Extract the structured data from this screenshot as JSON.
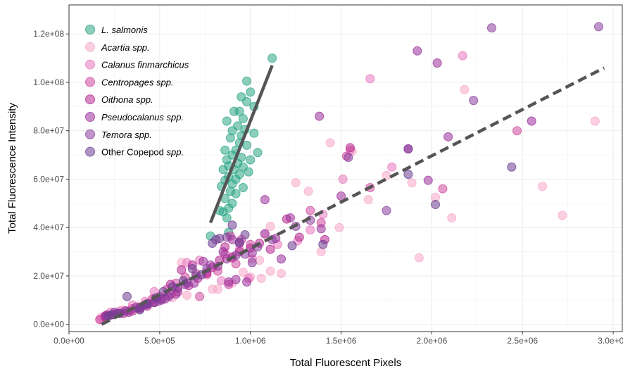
{
  "chart_data": {
    "type": "scatter",
    "xlabel": "Total Fluorescent Pixels",
    "ylabel": "Total Fluorescence Intensity",
    "xlim": [
      0,
      3050000
    ],
    "ylim": [
      -3000000,
      132000000
    ],
    "x_ticks": [
      0,
      500000,
      1000000,
      1500000,
      2000000,
      2500000,
      3000000
    ],
    "x_tick_labels": [
      "0.0e+00",
      "5.0e+05",
      "1.0e+06",
      "1.5e+06",
      "2.0e+06",
      "2.5e+06",
      "3.0e+06"
    ],
    "y_ticks": [
      0,
      20000000,
      40000000,
      60000000,
      80000000,
      100000000,
      120000000
    ],
    "y_tick_labels": [
      "0.0e+00",
      "2.0e+07",
      "4.0e+07",
      "6.0e+07",
      "8.0e+07",
      "1.0e+08",
      "1.2e+08"
    ],
    "grid": true,
    "legend_position": "top-left",
    "series": [
      {
        "name": "L. salmonis",
        "italic": true,
        "color": "#2ca585",
        "points": [
          [
            1120000,
            110000000
          ],
          [
            980000,
            100500000
          ],
          [
            1000000,
            96000000
          ],
          [
            980000,
            92000000
          ],
          [
            950000,
            94000000
          ],
          [
            1020000,
            90000000
          ],
          [
            940000,
            88000000
          ],
          [
            910000,
            88000000
          ],
          [
            960000,
            85000000
          ],
          [
            870000,
            84000000
          ],
          [
            930000,
            82000000
          ],
          [
            970000,
            80500000
          ],
          [
            900000,
            80000000
          ],
          [
            1020000,
            79000000
          ],
          [
            950000,
            78000000
          ],
          [
            890000,
            77000000
          ],
          [
            940000,
            75000000
          ],
          [
            980000,
            74000000
          ],
          [
            860000,
            72000000
          ],
          [
            920000,
            72000000
          ],
          [
            1040000,
            71000000
          ],
          [
            900000,
            70000000
          ],
          [
            950000,
            69000000
          ],
          [
            1000000,
            68000000
          ],
          [
            870000,
            68000000
          ],
          [
            930000,
            66500000
          ],
          [
            880000,
            65500000
          ],
          [
            960000,
            65000000
          ],
          [
            910000,
            64000000
          ],
          [
            850000,
            64000000
          ],
          [
            990000,
            63000000
          ],
          [
            940000,
            62000000
          ],
          [
            880000,
            61000000
          ],
          [
            920000,
            60000000
          ],
          [
            860000,
            59500000
          ],
          [
            900000,
            58000000
          ],
          [
            840000,
            57000000
          ],
          [
            960000,
            56500000
          ],
          [
            890000,
            55000000
          ],
          [
            920000,
            54000000
          ],
          [
            860000,
            52000000
          ],
          [
            900000,
            50000000
          ],
          [
            880000,
            48000000
          ],
          [
            850000,
            46500000
          ],
          [
            870000,
            44000000
          ],
          [
            830000,
            47000000
          ],
          [
            880000,
            38000000
          ],
          [
            780000,
            36500000
          ]
        ]
      },
      {
        "name": "Acartia spp.",
        "italic": true,
        "color": "#f7a8c8",
        "points": [
          [
            2900000,
            84000000
          ],
          [
            2180000,
            97000000
          ],
          [
            1440000,
            75000000
          ],
          [
            1560000,
            71500000
          ],
          [
            1750000,
            61500000
          ],
          [
            1650000,
            51500000
          ],
          [
            1250000,
            58500000
          ],
          [
            1320000,
            55000000
          ],
          [
            1890000,
            58500000
          ],
          [
            2020000,
            52500000
          ],
          [
            2110000,
            44000000
          ],
          [
            2610000,
            57000000
          ],
          [
            2720000,
            45000000
          ],
          [
            1930000,
            27500000
          ],
          [
            1490000,
            40000000
          ],
          [
            1390000,
            30000000
          ],
          [
            1110000,
            40500000
          ],
          [
            1080000,
            37000000
          ],
          [
            1050000,
            26500000
          ],
          [
            1110000,
            22000000
          ],
          [
            1170000,
            21000000
          ],
          [
            1000000,
            19500000
          ],
          [
            1060000,
            19000000
          ],
          [
            960000,
            21500000
          ],
          [
            900000,
            17000000
          ],
          [
            820000,
            14500000
          ],
          [
            790000,
            14500000
          ],
          [
            650000,
            12000000
          ],
          [
            570000,
            11000000
          ],
          [
            460000,
            10000000
          ],
          [
            380000,
            7500000
          ],
          [
            300000,
            6000000
          ],
          [
            180000,
            3000000
          ],
          [
            620000,
            25500000
          ]
        ]
      },
      {
        "name": "Calanus finmarchicus",
        "italic": true,
        "color": "#e879be",
        "points": [
          [
            1660000,
            101500000
          ],
          [
            2170000,
            111000000
          ],
          [
            1780000,
            65000000
          ],
          [
            1550000,
            72000000
          ],
          [
            1510000,
            60000000
          ],
          [
            1400000,
            45500000
          ],
          [
            1330000,
            39000000
          ],
          [
            1260000,
            34500000
          ],
          [
            1150000,
            33000000
          ],
          [
            1010000,
            27000000
          ],
          [
            940000,
            31000000
          ],
          [
            900000,
            28000000
          ],
          [
            720000,
            26500000
          ],
          [
            650000,
            25500000
          ],
          [
            600000,
            15000000
          ],
          [
            540000,
            12000000
          ],
          [
            470000,
            13500000
          ],
          [
            420000,
            9500000
          ],
          [
            350000,
            8000000
          ],
          [
            280000,
            5500000
          ],
          [
            230000,
            5000000
          ],
          [
            200000,
            3000000
          ],
          [
            170000,
            2000000
          ],
          [
            760000,
            20500000
          ],
          [
            840000,
            18000000
          ],
          [
            990000,
            19000000
          ]
        ]
      },
      {
        "name": "Centropages spp.",
        "italic": true,
        "color": "#d04ba0",
        "points": [
          [
            2470000,
            80000000
          ],
          [
            2060000,
            56000000
          ],
          [
            1530000,
            69500000
          ],
          [
            1660000,
            56500000
          ],
          [
            1390000,
            42000000
          ],
          [
            1330000,
            47000000
          ],
          [
            1000000,
            33000000
          ],
          [
            950000,
            35000000
          ],
          [
            890000,
            36500000
          ],
          [
            860000,
            29000000
          ],
          [
            820000,
            22000000
          ],
          [
            760000,
            21500000
          ],
          [
            700000,
            21000000
          ],
          [
            640000,
            19500000
          ],
          [
            590000,
            17000000
          ],
          [
            540000,
            14500000
          ],
          [
            500000,
            11500000
          ],
          [
            460000,
            10500000
          ],
          [
            420000,
            8000000
          ],
          [
            390000,
            7000000
          ],
          [
            350000,
            6500000
          ],
          [
            320000,
            5500000
          ],
          [
            260000,
            4500000
          ],
          [
            210000,
            4000000
          ],
          [
            170000,
            2000000
          ],
          [
            920000,
            25000000
          ],
          [
            880000,
            16500000
          ],
          [
            720000,
            11500000
          ]
        ]
      },
      {
        "name": "Oithona spp.",
        "italic": true,
        "color": "#b5288f",
        "points": [
          [
            1550000,
            73000000
          ],
          [
            1410000,
            35000000
          ],
          [
            1270000,
            36000000
          ],
          [
            1200000,
            43500000
          ],
          [
            1110000,
            31000000
          ],
          [
            1050000,
            33500000
          ],
          [
            1000000,
            31500000
          ],
          [
            940000,
            30000000
          ],
          [
            900000,
            27500000
          ],
          [
            860000,
            32000000
          ],
          [
            830000,
            26500000
          ],
          [
            790000,
            23500000
          ],
          [
            760000,
            21000000
          ],
          [
            710000,
            19000000
          ],
          [
            660000,
            16000000
          ],
          [
            600000,
            13500000
          ],
          [
            560000,
            12500000
          ],
          [
            510000,
            10500000
          ],
          [
            470000,
            9000000
          ],
          [
            430000,
            7500000
          ],
          [
            390000,
            6500000
          ],
          [
            350000,
            5500000
          ],
          [
            300000,
            4500000
          ],
          [
            240000,
            4000000
          ],
          [
            200000,
            3000000
          ],
          [
            560000,
            16500000
          ],
          [
            620000,
            22500000
          ],
          [
            680000,
            24500000
          ]
        ]
      },
      {
        "name": "Pseudocalanus spp.",
        "italic": true,
        "color": "#9b2f9b",
        "points": [
          [
            1920000,
            113000000
          ],
          [
            2030000,
            108000000
          ],
          [
            1380000,
            86000000
          ],
          [
            2090000,
            77500000
          ],
          [
            2550000,
            84000000
          ],
          [
            1870000,
            72500000
          ],
          [
            1980000,
            59500000
          ],
          [
            1500000,
            53000000
          ],
          [
            1080000,
            51500000
          ],
          [
            1390000,
            39500000
          ],
          [
            1140000,
            35500000
          ],
          [
            1080000,
            37500000
          ],
          [
            1010000,
            29500000
          ],
          [
            940000,
            33500000
          ],
          [
            900000,
            35000000
          ],
          [
            850000,
            30000000
          ],
          [
            820000,
            24000000
          ],
          [
            780000,
            24500000
          ],
          [
            740000,
            26000000
          ],
          [
            690000,
            17000000
          ],
          [
            640000,
            16500000
          ],
          [
            590000,
            12500000
          ],
          [
            530000,
            10500000
          ],
          [
            490000,
            9500000
          ],
          [
            440000,
            8500000
          ],
          [
            390000,
            7000000
          ],
          [
            330000,
            5000000
          ],
          [
            270000,
            4500000
          ],
          [
            200000,
            3500000
          ],
          [
            1170000,
            27000000
          ],
          [
            1220000,
            44000000
          ],
          [
            870000,
            27000000
          ],
          [
            920000,
            18500000
          ],
          [
            880000,
            17500000
          ],
          [
            980000,
            17500000
          ]
        ]
      },
      {
        "name": "Temora spp.",
        "italic": true,
        "color": "#8a3e9e",
        "points": [
          [
            2330000,
            122500000
          ],
          [
            2920000,
            123000000
          ],
          [
            2230000,
            92500000
          ],
          [
            1870000,
            72500000
          ],
          [
            1540000,
            69000000
          ],
          [
            1750000,
            47000000
          ],
          [
            1330000,
            43000000
          ],
          [
            1250000,
            40500000
          ],
          [
            1120000,
            35000000
          ],
          [
            1040000,
            32000000
          ],
          [
            970000,
            29000000
          ],
          [
            920000,
            28500000
          ],
          [
            870000,
            36000000
          ],
          [
            810000,
            35000000
          ],
          [
            760000,
            23000000
          ],
          [
            700000,
            20000000
          ],
          [
            650000,
            17000000
          ],
          [
            600000,
            15000000
          ],
          [
            550000,
            11500000
          ],
          [
            510000,
            10000000
          ],
          [
            470000,
            9000000
          ],
          [
            420000,
            8000000
          ],
          [
            370000,
            7000000
          ],
          [
            310000,
            5500000
          ],
          [
            250000,
            5000000
          ],
          [
            210000,
            3500000
          ],
          [
            1010000,
            25500000
          ]
        ]
      },
      {
        "name": "Other Copepod spp.",
        "italic": false,
        "italic_suffix": "spp.",
        "color": "#6b3d8f",
        "points": [
          [
            2440000,
            65000000
          ],
          [
            2020000,
            49500000
          ],
          [
            1870000,
            62000000
          ],
          [
            1400000,
            33000000
          ],
          [
            1230000,
            32500000
          ],
          [
            970000,
            37000000
          ],
          [
            940000,
            34000000
          ],
          [
            900000,
            41000000
          ],
          [
            830000,
            35500000
          ],
          [
            790000,
            33500000
          ],
          [
            730000,
            20500000
          ],
          [
            680000,
            23000000
          ],
          [
            630000,
            18000000
          ],
          [
            570000,
            15500000
          ],
          [
            520000,
            13500000
          ],
          [
            480000,
            11000000
          ],
          [
            430000,
            8500000
          ],
          [
            390000,
            6000000
          ],
          [
            320000,
            11500000
          ],
          [
            280000,
            4500000
          ],
          [
            240000,
            4000000
          ],
          [
            220000,
            3500000
          ]
        ]
      }
    ],
    "fit_lines": [
      {
        "style": "solid",
        "color": "#555555",
        "x": [
          780000,
          1120000
        ],
        "y": [
          42000000,
          107000000
        ]
      },
      {
        "style": "dashed",
        "color": "#555555",
        "x": [
          180000,
          2950000
        ],
        "y": [
          0,
          106000000
        ]
      }
    ]
  }
}
